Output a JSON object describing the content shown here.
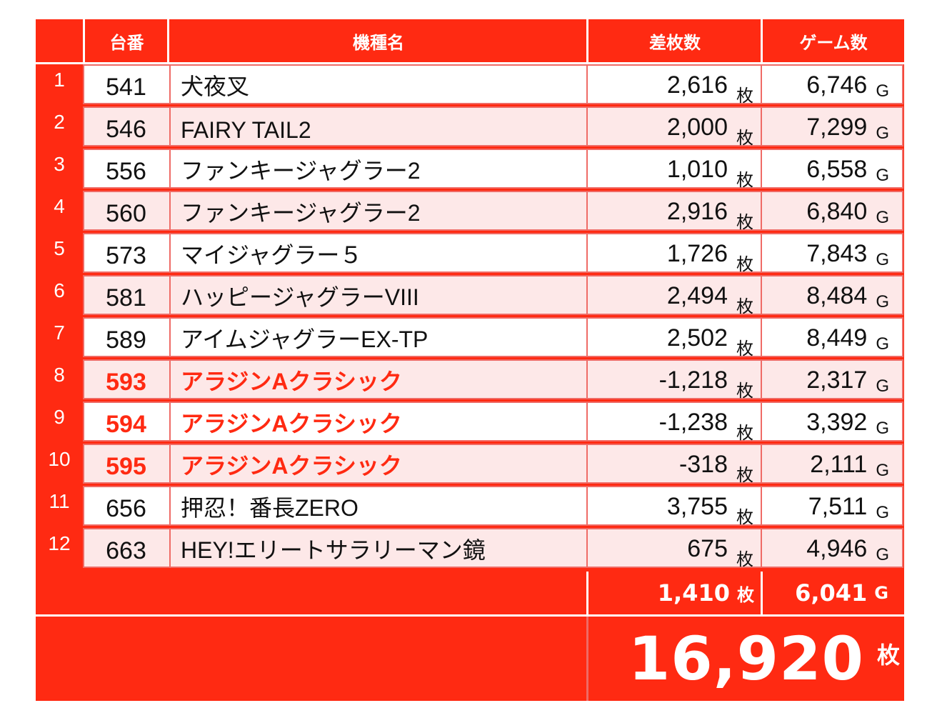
{
  "header": {
    "machine_no": "台番",
    "model_name": "機種名",
    "diff": "差枚数",
    "games": "ゲーム数"
  },
  "units": {
    "coin": "枚",
    "game": "G"
  },
  "rows": [
    {
      "rank": "1",
      "no": "541",
      "name": "犬夜叉",
      "diff": "2,616",
      "games": "6,746",
      "highlight": false
    },
    {
      "rank": "2",
      "no": "546",
      "name": "FAIRY TAIL2",
      "diff": "2,000",
      "games": "7,299",
      "highlight": false
    },
    {
      "rank": "3",
      "no": "556",
      "name": "ファンキージャグラー2",
      "diff": "1,010",
      "games": "6,558",
      "highlight": false
    },
    {
      "rank": "4",
      "no": "560",
      "name": "ファンキージャグラー2",
      "diff": "2,916",
      "games": "6,840",
      "highlight": false
    },
    {
      "rank": "5",
      "no": "573",
      "name": "マイジャグラー５",
      "diff": "1,726",
      "games": "7,843",
      "highlight": false
    },
    {
      "rank": "6",
      "no": "581",
      "name": "ハッピージャグラーVIII",
      "diff": "2,494",
      "games": "8,484",
      "highlight": false
    },
    {
      "rank": "7",
      "no": "589",
      "name": "アイムジャグラーEX-TP",
      "diff": "2,502",
      "games": "8,449",
      "highlight": false
    },
    {
      "rank": "8",
      "no": "593",
      "name": "アラジンAクラシック",
      "diff": "-1,218",
      "games": "2,317",
      "highlight": true
    },
    {
      "rank": "9",
      "no": "594",
      "name": "アラジンAクラシック",
      "diff": "-1,238",
      "games": "3,392",
      "highlight": true
    },
    {
      "rank": "10",
      "no": "595",
      "name": "アラジンAクラシック",
      "diff": "-318",
      "games": "2,111",
      "highlight": true
    },
    {
      "rank": "11",
      "no": "656",
      "name": "押忍！番長ZERO",
      "diff": "3,755",
      "games": "7,511",
      "highlight": false
    },
    {
      "rank": "12",
      "no": "663",
      "name": "HEY!エリートサラリーマン鏡",
      "diff": "675",
      "games": "4,946",
      "highlight": false
    }
  ],
  "average": {
    "diff": "1,410",
    "games": "6,041"
  },
  "total": {
    "diff": "16,920"
  },
  "colors": {
    "accent": "#ff2a12",
    "row_odd": "#ffffff",
    "row_even": "#fde8e8",
    "border": "#ef6b66"
  }
}
